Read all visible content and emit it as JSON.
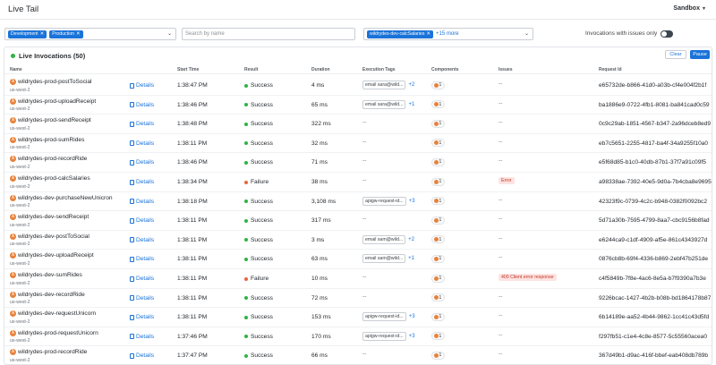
{
  "app": {
    "title": "Live Tail",
    "environment": "Sandbox"
  },
  "filters": {
    "env_chips": [
      "Development",
      "Production"
    ],
    "search_placeholder": "Search by name",
    "function_chip": "wildrydes-dev-calcSalaries",
    "function_more": "+15 more",
    "issues_toggle_label": "Invocations with issues only",
    "issues_toggle_on": false
  },
  "panel": {
    "title": "Live Invocations (50)",
    "clear_label": "Clear",
    "pause_label": "Pause",
    "columns": [
      "Name",
      "Start Time",
      "Result",
      "Duration",
      "Execution Tags",
      "Components",
      "Issues",
      "Request Id"
    ]
  },
  "colors": {
    "accent": "#1a73d9",
    "success": "#2fb344",
    "failure": "#e8653a",
    "lambda": "#e8823a"
  },
  "details_label": "Details",
  "rows": [
    {
      "name": "wildrydes-prod-postToSocial",
      "region": "us-west-2",
      "start": "1:38:47 PM",
      "result": "Success",
      "duration": "4 ms",
      "tag": "email sara@wild...",
      "tag_more": "+2",
      "components": "1",
      "issue": "--",
      "request_id": "e65732de-b866-41d0-a03b-cf4e004f2b1f"
    },
    {
      "name": "wildrydes-prod-uploadReceipt",
      "region": "us-west-2",
      "start": "1:38:46 PM",
      "result": "Success",
      "duration": "65 ms",
      "tag": "email sara@wild...",
      "tag_more": "+1",
      "components": "1",
      "issue": "--",
      "request_id": "ba1886e9-0722-4fb1-8081-ba841cad0c59"
    },
    {
      "name": "wildrydes-prod-sendReceipt",
      "region": "us-west-2",
      "start": "1:38:48 PM",
      "result": "Success",
      "duration": "322 ms",
      "tag": "",
      "tag_more": "",
      "components": "1",
      "issue": "--",
      "request_id": "0c9c29ab-1851-4567-b347-2a96dceb8ed9"
    },
    {
      "name": "wildrydes-prod-sumRides",
      "region": "us-west-2",
      "start": "1:38:11 PM",
      "result": "Success",
      "duration": "32 ms",
      "tag": "",
      "tag_more": "",
      "components": "1",
      "issue": "--",
      "request_id": "eb7c5651-2255-4817-ba4f-34a9255f10a0"
    },
    {
      "name": "wildrydes-prod-recordRide",
      "region": "us-west-2",
      "start": "1:38:46 PM",
      "result": "Success",
      "duration": "71 ms",
      "tag": "",
      "tag_more": "",
      "components": "1",
      "issue": "--",
      "request_id": "e5f68d85-b1c0-40db-87b1-37f7a91c09f5"
    },
    {
      "name": "wildrydes-prod-calcSalaries",
      "region": "us-west-2",
      "start": "1:38:34 PM",
      "result": "Failure",
      "duration": "38 ms",
      "tag": "",
      "tag_more": "",
      "components": "1",
      "issue": "Error",
      "request_id": "a98338ae-7392-40e5-9d0a-7b4cba8e9695"
    },
    {
      "name": "wildrydes-dev-purchaseNewUnicron",
      "region": "us-west-2",
      "start": "1:38:18 PM",
      "result": "Success",
      "duration": "3,108 ms",
      "tag": "apigw-request-id...",
      "tag_more": "+3",
      "components": "1",
      "issue": "--",
      "request_id": "42323f9c-0739-4c2c-b948-0382f0092bc2"
    },
    {
      "name": "wildrydes-dev-sendReceipt",
      "region": "us-west-2",
      "start": "1:38:11 PM",
      "result": "Success",
      "duration": "317 ms",
      "tag": "",
      "tag_more": "",
      "components": "1",
      "issue": "--",
      "request_id": "5d71a30b-7595-4799-8aa7-cbc9156b8fad"
    },
    {
      "name": "wildrydes-dev-postToSocial",
      "region": "us-west-2",
      "start": "1:38:11 PM",
      "result": "Success",
      "duration": "3 ms",
      "tag": "email sam@wild...",
      "tag_more": "+2",
      "components": "1",
      "issue": "--",
      "request_id": "e6244ca9-c1df-4909-af5e-861c4343927d"
    },
    {
      "name": "wildrydes-dev-uploadReceipt",
      "region": "us-west-2",
      "start": "1:38:11 PM",
      "result": "Success",
      "duration": "63 ms",
      "tag": "email sam@wild...",
      "tag_more": "+1",
      "components": "1",
      "issue": "--",
      "request_id": "0876cb8b-69f4-4336-b869-2ebf47b251de"
    },
    {
      "name": "wildrydes-dev-sumRides",
      "region": "us-west-2",
      "start": "1:38:11 PM",
      "result": "Failure",
      "duration": "10 ms",
      "tag": "",
      "tag_more": "",
      "components": "1",
      "issue": "400 Client error response",
      "request_id": "c4f5849b-7f8e-4ac6-8e5a-b7f9390a7b3e"
    },
    {
      "name": "wildrydes-dev-recordRide",
      "region": "us-west-2",
      "start": "1:38:11 PM",
      "result": "Success",
      "duration": "72 ms",
      "tag": "",
      "tag_more": "",
      "components": "1",
      "issue": "--",
      "request_id": "9226bcac-1427-4b2b-b08b-bd1864178b87"
    },
    {
      "name": "wildrydes-dev-requestUnicorn",
      "region": "us-west-2",
      "start": "1:38:11 PM",
      "result": "Success",
      "duration": "153 ms",
      "tag": "apigw-request-id...",
      "tag_more": "+3",
      "components": "1",
      "issue": "--",
      "request_id": "6b14189e-aa52-4b44-9862-1cc41c43d5fd"
    },
    {
      "name": "wildrydes-prod-requestUnicorn",
      "region": "us-west-2",
      "start": "1:37:46 PM",
      "result": "Success",
      "duration": "170 ms",
      "tag": "apigw-request-id...",
      "tag_more": "+3",
      "components": "1",
      "issue": "--",
      "request_id": "f297fb51-c1e4-4c8e-8577-5c55560acea0"
    },
    {
      "name": "wildrydes-prod-recordRide",
      "region": "us-west-2",
      "start": "1:37:47 PM",
      "result": "Success",
      "duration": "66 ms",
      "tag": "",
      "tag_more": "",
      "components": "1",
      "issue": "--",
      "request_id": "367d49b1-d9ac-416f-bbef-eab408db789b"
    }
  ]
}
